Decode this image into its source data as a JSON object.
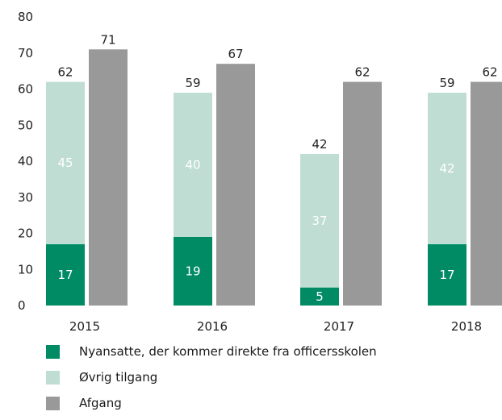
{
  "chart_data": {
    "type": "bar",
    "stacked_with_side_bar": true,
    "categories": [
      "2015",
      "2016",
      "2017",
      "2018"
    ],
    "series": [
      {
        "name": "Nyansatte, der kommer direkte fra officersskolen",
        "stack": "tilgang",
        "values": [
          17,
          19,
          5,
          17
        ],
        "color": "#008b65"
      },
      {
        "name": "Øvrig tilgang",
        "stack": "tilgang",
        "values": [
          45,
          40,
          37,
          42
        ],
        "color": "#bfddd2"
      },
      {
        "name": "Afgang",
        "stack": "afgang",
        "values": [
          71,
          67,
          62,
          62
        ],
        "color": "#999999"
      }
    ],
    "stack_totals": [
      62,
      59,
      42,
      59
    ],
    "ylim": [
      0,
      80
    ],
    "yticks": [
      0,
      10,
      20,
      30,
      40,
      50,
      60,
      70,
      80
    ],
    "grid": false,
    "legend_position": "bottom-left"
  }
}
